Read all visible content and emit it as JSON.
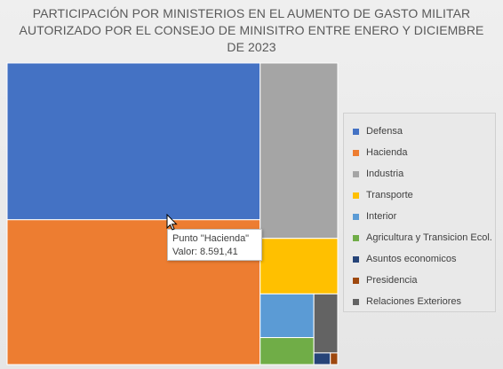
{
  "chart_data": {
    "type": "treemap",
    "title": "PARTICIPACIÓN POR MINISTERIOS EN EL AUMENTO DE GASTO MILITAR AUTORIZADO POR EL CONSEJO DE MINISITRO ENTRE ENERO Y DICIEMBRE DE 2023",
    "legend_position": "right",
    "series": [
      {
        "name": "Defensa",
        "value": 9300,
        "color": "#4472C4"
      },
      {
        "name": "Hacienda",
        "value": 8591.41,
        "color": "#ED7D31"
      },
      {
        "name": "Industria",
        "value": 3190,
        "color": "#A5A5A5"
      },
      {
        "name": "Transporte",
        "value": 1010,
        "color": "#FFC000"
      },
      {
        "name": "Interior",
        "value": 550,
        "color": "#5B9BD5"
      },
      {
        "name": "Agricultura y Transicion Ecol.",
        "value": 340,
        "color": "#70AD47"
      },
      {
        "name": "Asuntos economicos",
        "value": 45,
        "color": "#264478"
      },
      {
        "name": "Presidencia",
        "value": 20,
        "color": "#9E480E"
      },
      {
        "name": "Relaciones Exteriores",
        "value": 330,
        "color": "#636363"
      }
    ]
  },
  "tooltip": {
    "line1": "Punto \"Hacienda\"",
    "line2": "Valor: 8.591,41"
  }
}
